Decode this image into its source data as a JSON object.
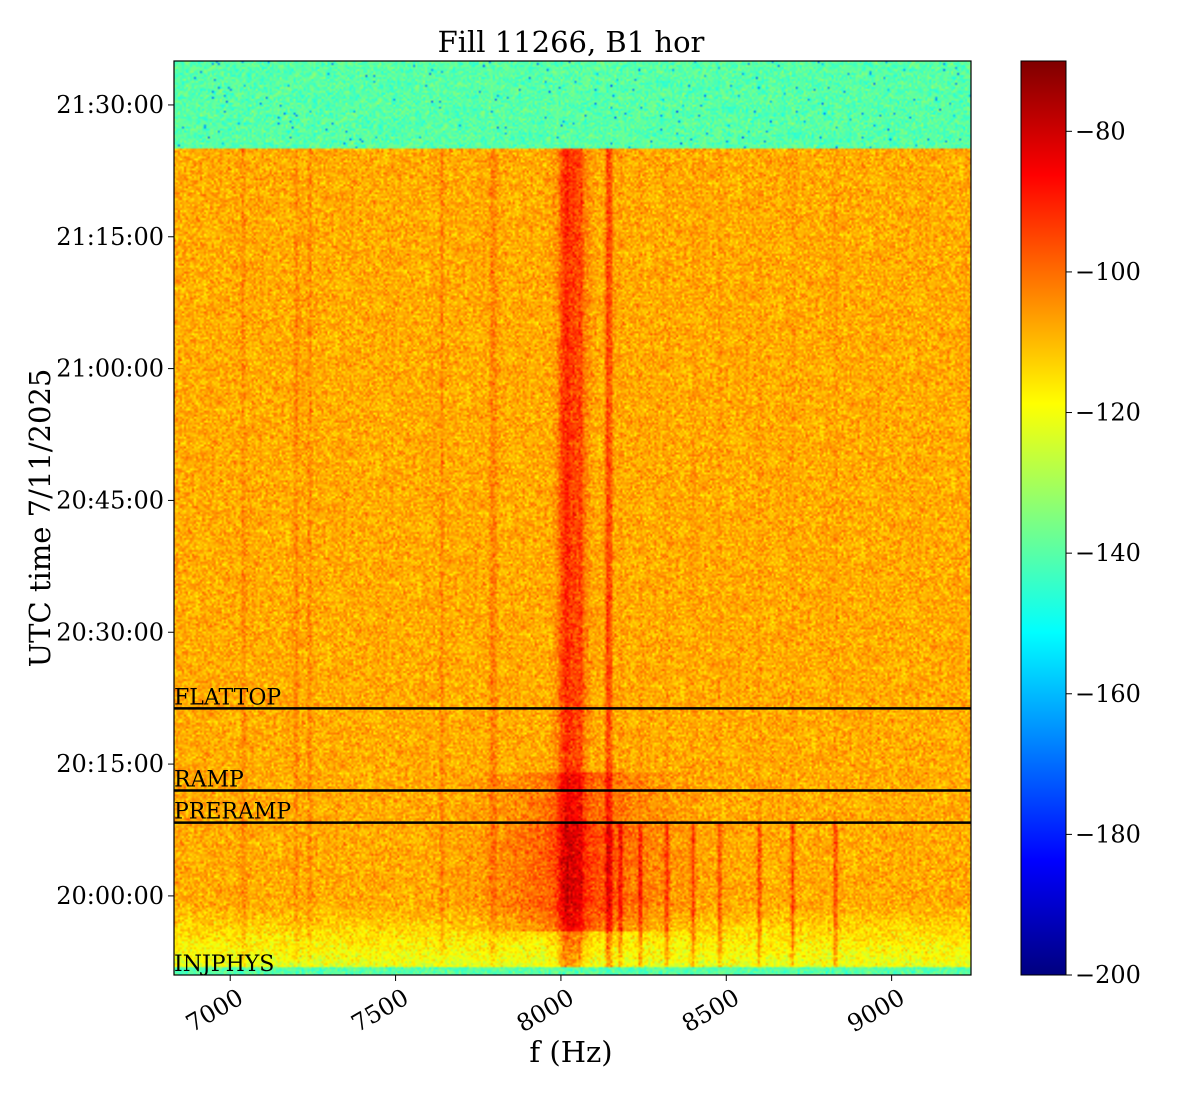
{
  "chart_data": {
    "type": "heatmap",
    "title": "Fill 11266, B1 hor",
    "xlabel": "f (Hz)",
    "ylabel": "UTC time 7/11/2025",
    "xlim": [
      6830,
      9240
    ],
    "ylim": [
      "19:51:00",
      "21:35:00"
    ],
    "x_ticks": [
      7000,
      7500,
      8000,
      8500,
      9000
    ],
    "x_tick_labels": [
      "7000",
      "7500",
      "8000",
      "8500",
      "9000"
    ],
    "y_ticks": [
      "20:00:00",
      "20:15:00",
      "20:30:00",
      "20:45:00",
      "21:00:00",
      "21:15:00",
      "21:30:00"
    ],
    "y_tick_labels": [
      "20:00:00",
      "20:15:00",
      "20:30:00",
      "20:45:00",
      "21:00:00",
      "21:15:00",
      "21:30:00"
    ],
    "colorbar": {
      "colormap": "jet",
      "range": [
        -200,
        -70
      ],
      "ticks": [
        -80,
        -100,
        -120,
        -140,
        -160,
        -180,
        -200
      ],
      "tick_labels": [
        "−80",
        "−100",
        "−120",
        "−140",
        "−160",
        "−180",
        "−200"
      ]
    },
    "events": [
      {
        "label": "FLATTOP",
        "time": "20:21:20"
      },
      {
        "label": "RAMP",
        "time": "20:12:00"
      },
      {
        "label": "PRERAMP",
        "time": "20:08:20"
      },
      {
        "label": "INJPHYS",
        "time": "19:51:00"
      }
    ],
    "data_regions": {
      "background_level": -108,
      "quiet_level_before": -140,
      "quiet_level_after": -140,
      "active_start": "19:52:00",
      "active_end": "21:25:00",
      "lines_hz": [
        7040,
        7200,
        7240,
        7640,
        7790,
        7800,
        8000,
        8010,
        8020,
        8060,
        8140,
        8150,
        8180,
        8240,
        8320,
        8400,
        8480,
        8600,
        8700,
        8830
      ]
    },
    "colors": {
      "event_line": "#000000"
    }
  }
}
